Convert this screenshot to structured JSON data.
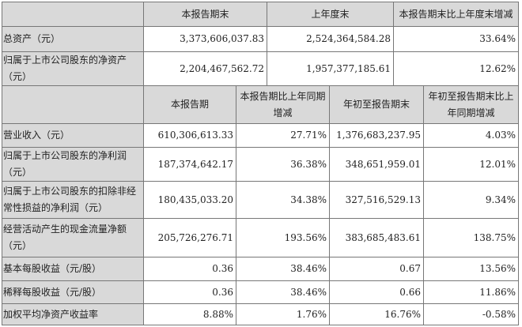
{
  "table1": {
    "headers": [
      "",
      "本报告期末",
      "上年度末",
      "本报告期末比上年度末增减"
    ],
    "rows": [
      {
        "label": "总资产（元）",
        "values": [
          "3,373,606,037.83",
          "2,524,364,584.28",
          "33.64%"
        ]
      },
      {
        "label": "归属于上市公司股东的净资产（元）",
        "values": [
          "2,204,467,562.72",
          "1,957,377,185.61",
          "12.62%"
        ]
      }
    ]
  },
  "table2": {
    "headers": [
      "",
      "本报告期",
      "本报告期比上年同期增减",
      "年初至报告期末",
      "年初至报告期末比上年同期增减"
    ],
    "rows": [
      {
        "label": "营业收入（元）",
        "values": [
          "610,306,613.33",
          "27.71%",
          "1,376,683,237.95",
          "4.03%"
        ]
      },
      {
        "label": "归属于上市公司股东的净利润（元）",
        "values": [
          "187,374,642.17",
          "36.38%",
          "348,651,959.01",
          "12.01%"
        ]
      },
      {
        "label": "归属于上市公司股东的扣除非经常性损益的净利润（元）",
        "values": [
          "180,435,033.20",
          "34.38%",
          "327,516,529.13",
          "9.34%"
        ]
      },
      {
        "label": "经营活动产生的现金流量净额（元）",
        "values": [
          "205,726,276.71",
          "193.56%",
          "383,685,483.61",
          "138.75%"
        ]
      },
      {
        "label": "基本每股收益（元/股）",
        "values": [
          "0.36",
          "38.46%",
          "0.67",
          "13.56%"
        ]
      },
      {
        "label": "稀释每股收益（元/股）",
        "values": [
          "0.36",
          "38.46%",
          "0.66",
          "11.86%"
        ]
      },
      {
        "label": "加权平均净资产收益率",
        "values": [
          "8.88%",
          "1.76%",
          "16.76%",
          "-0.58%"
        ]
      }
    ]
  }
}
